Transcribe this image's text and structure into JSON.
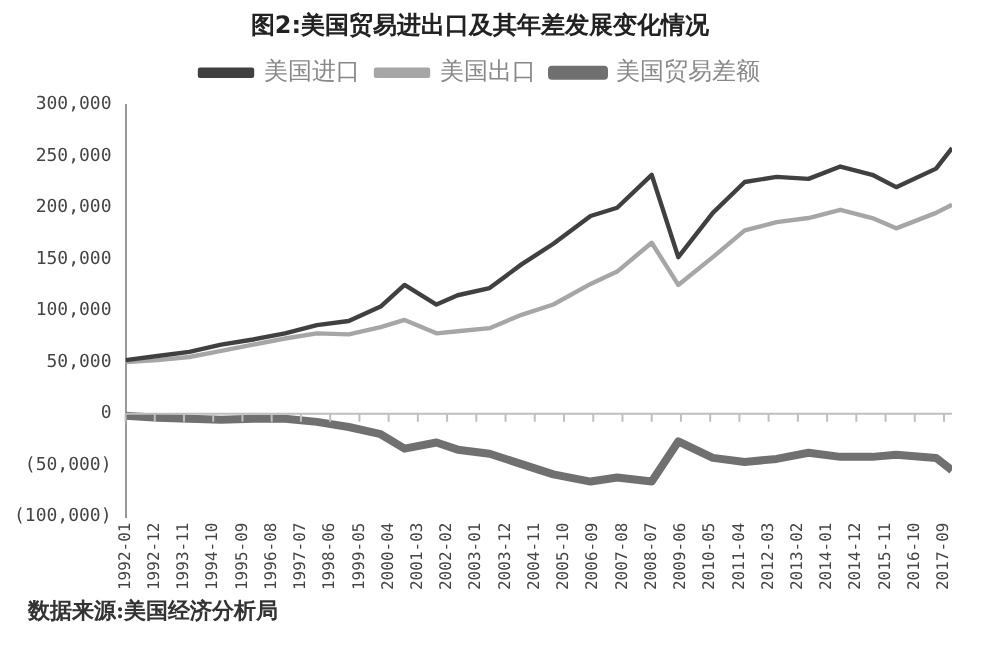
{
  "chart_data": {
    "type": "line",
    "title": "图2:美国贸易进出口及其年差发展变化情况",
    "x": [
      "1992-01",
      "1993-01",
      "1994-01",
      "1995-01",
      "1996-01",
      "1997-01",
      "1998-01",
      "1999-01",
      "2000-01",
      "2000-10",
      "2001-10",
      "2002-06",
      "2003-06",
      "2004-06",
      "2005-06",
      "2006-08",
      "2007-06",
      "2008-07",
      "2009-05",
      "2010-06",
      "2011-06",
      "2012-06",
      "2013-06",
      "2014-06",
      "2015-06",
      "2016-03",
      "2017-06",
      "2017-12"
    ],
    "series": [
      {
        "name": "美国进口",
        "color": "#404040",
        "values": [
          52000,
          56000,
          60000,
          67000,
          72000,
          78000,
          86000,
          90000,
          104000,
          125000,
          106000,
          115000,
          122000,
          145000,
          165000,
          192000,
          200000,
          232000,
          152000,
          195000,
          225000,
          230000,
          228000,
          240000,
          232000,
          220000,
          238000,
          258000
        ]
      },
      {
        "name": "美国出口",
        "color": "#a6a6a6",
        "values": [
          50000,
          52000,
          55000,
          61000,
          67000,
          73000,
          78000,
          77000,
          84000,
          91000,
          78000,
          80000,
          83000,
          96000,
          106000,
          126000,
          138000,
          166000,
          125000,
          152000,
          178000,
          186000,
          190000,
          198000,
          190000,
          180000,
          195000,
          203000
        ]
      },
      {
        "name": "美国贸易差额",
        "color": "#707070",
        "values": [
          -2000,
          -4000,
          -5000,
          -6000,
          -5000,
          -5000,
          -8000,
          -13000,
          -20000,
          -34000,
          -28000,
          -35000,
          -39000,
          -49000,
          -59000,
          -66000,
          -62000,
          -66000,
          -27000,
          -43000,
          -47000,
          -44000,
          -38000,
          -42000,
          -42000,
          -40000,
          -43000,
          -55000
        ]
      }
    ],
    "xlim": [
      "1992-01",
      "2017-12"
    ],
    "xticks": [
      "1992-01",
      "1992-12",
      "1993-11",
      "1994-10",
      "1995-09",
      "1996-08",
      "1997-07",
      "1998-06",
      "1999-05",
      "2000-04",
      "2001-03",
      "2002-02",
      "2003-01",
      "2003-12",
      "2004-11",
      "2005-10",
      "2006-09",
      "2007-08",
      "2008-07",
      "2009-06",
      "2010-05",
      "2011-04",
      "2012-03",
      "2013-02",
      "2014-01",
      "2014-12",
      "2015-11",
      "2016-10",
      "2017-09"
    ],
    "ylim": [
      -100000,
      300000
    ],
    "yticks": [
      {
        "value": -100000,
        "label": "(100,000)"
      },
      {
        "value": -50000,
        "label": "(50,000)"
      },
      {
        "value": 0,
        "label": "0"
      },
      {
        "value": 50000,
        "label": "50,000"
      },
      {
        "value": 100000,
        "label": "100,000"
      },
      {
        "value": 150000,
        "label": "150,000"
      },
      {
        "value": 200000,
        "label": "200,000"
      },
      {
        "value": 250000,
        "label": "250,000"
      },
      {
        "value": 300000,
        "label": "300,000"
      }
    ],
    "ref_lines": [
      {
        "axis": "y",
        "value": 0,
        "color": "#bfbfbf"
      }
    ],
    "legend": "top",
    "grid": false,
    "marker": "none",
    "line_style": "solid",
    "annotations": [
      "数据来源:美国经济分析局"
    ]
  }
}
